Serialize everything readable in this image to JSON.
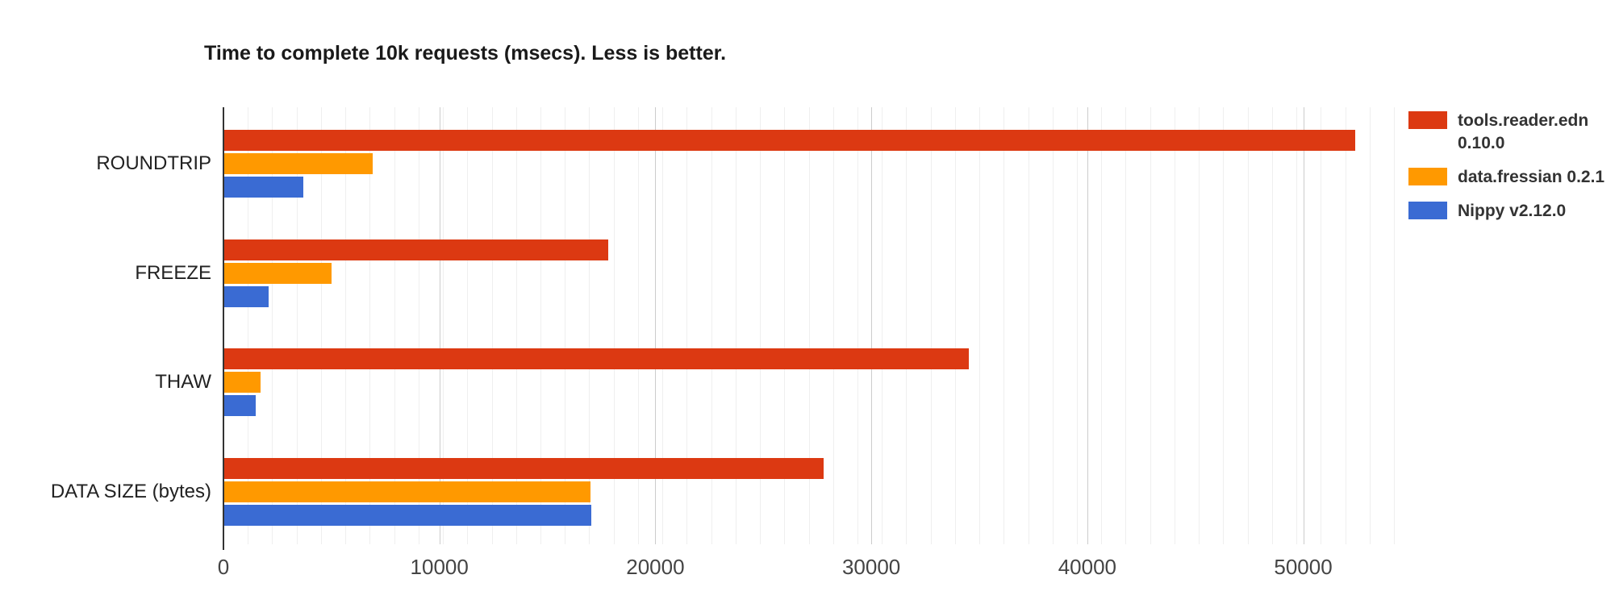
{
  "chart_data": {
    "type": "bar",
    "orientation": "horizontal",
    "title": "Time to complete 10k requests (msecs). Less is better.",
    "categories": [
      "ROUNDTRIP",
      "FREEZE",
      "THAW",
      "DATA SIZE (bytes)"
    ],
    "series": [
      {
        "name": "tools.reader.edn 0.10.0",
        "color": "#dc3912",
        "values": [
          52400,
          17800,
          34500,
          27800
        ]
      },
      {
        "name": "data.fressian 0.2.1",
        "color": "#ff9900",
        "values": [
          6900,
          5000,
          1700,
          17000
        ]
      },
      {
        "name": "Nippy v2.12.0",
        "color": "#3a6bd3",
        "values": [
          3700,
          2100,
          1500,
          17050
        ]
      }
    ],
    "xlabel": "",
    "ylabel": "",
    "x_axis": {
      "min": 0,
      "max": 54200,
      "ticks": [
        0,
        10000,
        20000,
        30000,
        40000,
        50000
      ],
      "tick_labels": [
        "0",
        "10000",
        "20000",
        "30000",
        "40000",
        "50000"
      ],
      "minor_grid_intervals": 48,
      "grid": true
    },
    "legend_position": "right",
    "colors": {
      "major_gridline": "#cccccc",
      "minor_gridline": "#efefef",
      "axis_baseline": "#333333",
      "title_text": "#1a1a1a",
      "category_text": "#222222",
      "tick_text": "#444444",
      "legend_text": "#333333",
      "background": "#ffffff"
    }
  }
}
